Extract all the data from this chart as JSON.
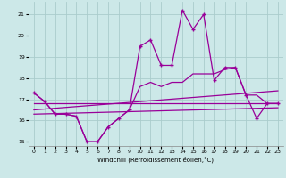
{
  "xlabel": "Windchill (Refroidissement éolien,°C)",
  "xlim": [
    -0.5,
    23.5
  ],
  "ylim": [
    14.8,
    21.6
  ],
  "yticks": [
    15,
    16,
    17,
    18,
    19,
    20,
    21
  ],
  "xticks": [
    0,
    1,
    2,
    3,
    4,
    5,
    6,
    7,
    8,
    9,
    10,
    11,
    12,
    13,
    14,
    15,
    16,
    17,
    18,
    19,
    20,
    21,
    22,
    23
  ],
  "bg_color": "#cce8e8",
  "grid_color": "#aacccc",
  "line_color": "#990099",
  "lines": [
    {
      "x": [
        0,
        1,
        2,
        3,
        4,
        5,
        6,
        7,
        8,
        9,
        10,
        11,
        12,
        13,
        14,
        15,
        16,
        17,
        18,
        19,
        20,
        21,
        22,
        23
      ],
      "y": [
        17.3,
        16.9,
        16.3,
        16.3,
        16.2,
        15.0,
        15.0,
        15.7,
        16.1,
        16.5,
        19.5,
        19.8,
        18.6,
        18.6,
        21.2,
        20.3,
        21.0,
        17.9,
        18.5,
        18.5,
        17.2,
        16.1,
        16.8,
        16.8
      ],
      "marker": "+"
    },
    {
      "x": [
        0,
        1,
        2,
        3,
        4,
        5,
        6,
        7,
        8,
        9,
        10,
        11,
        12,
        13,
        14,
        15,
        16,
        17,
        18,
        19,
        20,
        21,
        22,
        23
      ],
      "y": [
        17.3,
        16.9,
        16.3,
        16.3,
        16.2,
        15.0,
        15.0,
        15.7,
        16.1,
        16.5,
        17.6,
        17.8,
        17.6,
        17.8,
        17.8,
        18.2,
        18.2,
        18.2,
        18.4,
        18.5,
        17.2,
        17.2,
        16.8,
        16.8
      ],
      "marker": null
    },
    {
      "x": [
        0,
        23
      ],
      "y": [
        16.5,
        17.4
      ],
      "marker": null
    },
    {
      "x": [
        0,
        23
      ],
      "y": [
        16.8,
        16.8
      ],
      "marker": null
    },
    {
      "x": [
        0,
        23
      ],
      "y": [
        16.3,
        16.6
      ],
      "marker": null
    }
  ]
}
